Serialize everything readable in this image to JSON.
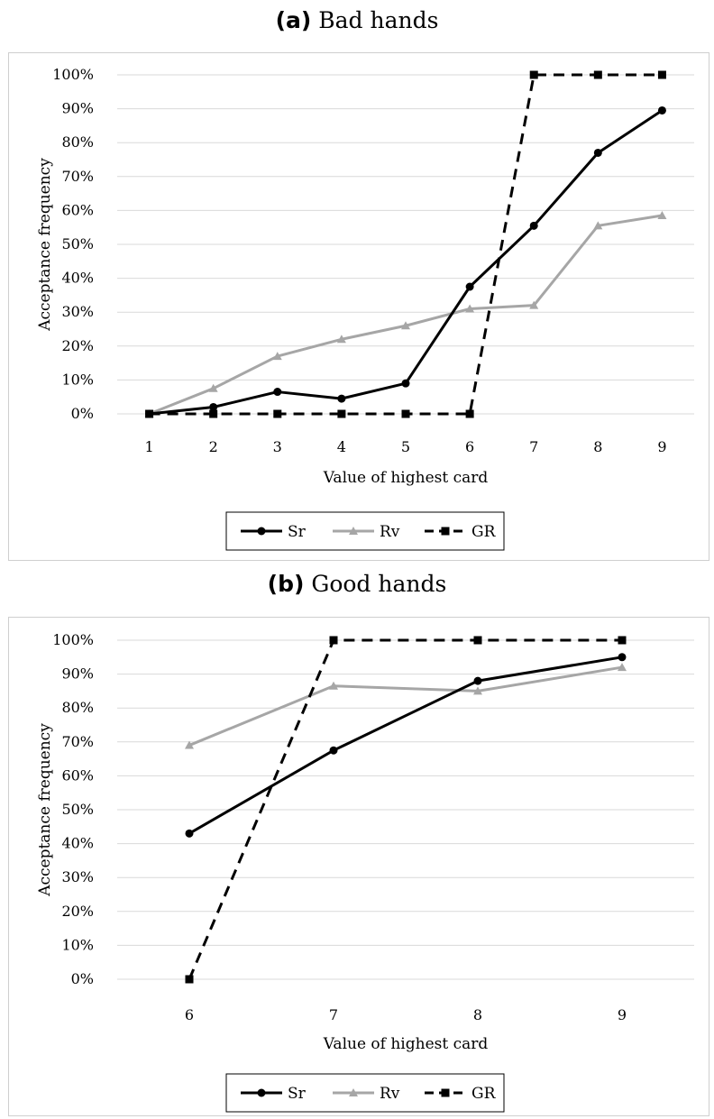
{
  "colors": {
    "Sr": "#000000",
    "Rv": "#a6a6a6",
    "GR": "#000000",
    "grid": "#d9d9d9",
    "frame": "#cfcfcf"
  },
  "chart_data": [
    {
      "type": "line",
      "panel_tag": "(a)",
      "title": "Bad hands",
      "xlabel": "Value of highest card",
      "ylabel": "Acceptance frequency",
      "x": [
        1,
        2,
        3,
        4,
        5,
        6,
        7,
        8,
        9
      ],
      "x_ticks": [
        "1",
        "2",
        "3",
        "4",
        "5",
        "6",
        "7",
        "8",
        "9"
      ],
      "ylim": [
        0,
        100
      ],
      "y_ticks": [
        "0%",
        "10%",
        "20%",
        "30%",
        "40%",
        "50%",
        "60%",
        "70%",
        "80%",
        "90%",
        "100%"
      ],
      "grid": true,
      "legend_position": "bottom",
      "series": [
        {
          "name": "Sr",
          "marker": "circle",
          "dash": "solid",
          "values": [
            0,
            2,
            6.5,
            4.5,
            9,
            37.5,
            55.5,
            77,
            89.5
          ]
        },
        {
          "name": "Rv",
          "marker": "triangle",
          "dash": "solid",
          "values": [
            0,
            7.5,
            17,
            22,
            26,
            31,
            32,
            55.5,
            58.5
          ]
        },
        {
          "name": "GR",
          "marker": "square",
          "dash": "dashed",
          "values": [
            0,
            0,
            0,
            0,
            0,
            0,
            100,
            100,
            100
          ]
        }
      ]
    },
    {
      "type": "line",
      "panel_tag": "(b)",
      "title": "Good hands",
      "xlabel": "Value of highest card",
      "ylabel": "Acceptance frequency",
      "x": [
        6,
        7,
        8,
        9
      ],
      "x_ticks": [
        "6",
        "7",
        "8",
        "9"
      ],
      "ylim": [
        0,
        100
      ],
      "y_ticks": [
        "0%",
        "10%",
        "20%",
        "30%",
        "40%",
        "50%",
        "60%",
        "70%",
        "80%",
        "90%",
        "100%"
      ],
      "grid": true,
      "legend_position": "bottom",
      "series": [
        {
          "name": "Sr",
          "marker": "circle",
          "dash": "solid",
          "values": [
            43,
            67.5,
            88,
            95
          ]
        },
        {
          "name": "Rv",
          "marker": "triangle",
          "dash": "solid",
          "values": [
            69,
            86.5,
            85,
            92
          ]
        },
        {
          "name": "GR",
          "marker": "square",
          "dash": "dashed",
          "values": [
            0,
            100,
            100,
            100
          ]
        }
      ]
    }
  ]
}
